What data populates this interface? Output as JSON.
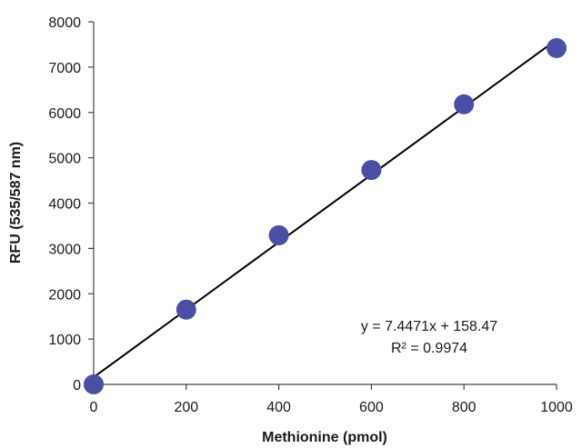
{
  "chart_data": {
    "type": "scatter",
    "title": "",
    "xlabel": "Methionine (pmol)",
    "ylabel": "RFU (535/587 nm)",
    "xlim": [
      0,
      1000
    ],
    "ylim": [
      0,
      8000
    ],
    "x_ticks": [
      0,
      200,
      400,
      600,
      800,
      1000
    ],
    "y_ticks": [
      0,
      1000,
      2000,
      3000,
      4000,
      5000,
      6000,
      7000,
      8000
    ],
    "grid": false,
    "legend": "none",
    "series": [
      {
        "color": "#4a4fa3",
        "points": [
          {
            "x": 0,
            "y": 0
          },
          {
            "x": 200,
            "y": 1650
          },
          {
            "x": 400,
            "y": 3290
          },
          {
            "x": 600,
            "y": 4730
          },
          {
            "x": 800,
            "y": 6180
          },
          {
            "x": 1000,
            "y": 7420
          }
        ]
      }
    ],
    "trendline": {
      "slope": 7.4471,
      "intercept": 158.47,
      "color": "#000000",
      "equation": "y = 7.4471x + 158.47",
      "r_squared": "R² = 0.9974"
    }
  }
}
